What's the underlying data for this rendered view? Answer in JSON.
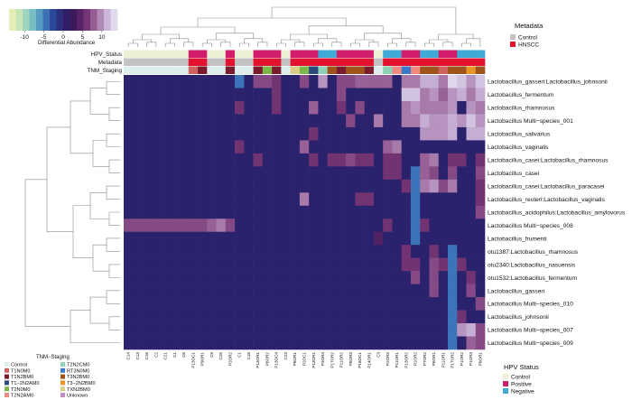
{
  "chart_data": {
    "type": "heatmap",
    "colorbar": {
      "label": "Differential Abundance",
      "ticks": [
        -10,
        -5,
        0,
        5,
        10
      ],
      "range": [
        -14,
        14
      ],
      "colors": [
        "#f3f2b5",
        "#c5e4ba",
        "#83c7c1",
        "#4a90c0",
        "#2c4a9e",
        "#2a226c",
        "#3c1858",
        "#6b2a6b",
        "#9e6a9e",
        "#c8b3d8",
        "#eceaf6"
      ]
    },
    "row_labels": [
      "Lactobacillus_gasseri:Lactobacillus_johnsonii",
      "Lactobacillus_fermentum",
      "Lactobacillus_rhamnosus",
      "Lactobacillus Multi−species_001",
      "Lactobacillus_salivarius",
      "Lactobacillus_vaginalis",
      "Lactobacillus_casei:Lactobacillus_rhamnosus",
      "Lactobacillus_casei",
      "Lactobacillus_casei:Lactobacillus_paracasei",
      "Lactobacillus_reuteri:Lactobacillus_vaginalis",
      "Lactobacillus_acidophilus:Lactobacillus_amylovorus",
      "Lactobacillus Multi−species_008",
      "Lactobacillus_frumenti",
      "otu1387:Lactobacillus_rhamnosus",
      "otu2340:Lactobacillus_nasuensis",
      "otu1532:Lactobacillus_fermentum",
      "Lactobacillus_gasseri",
      "Lactobacillus Multi−species_010",
      "Lactobacillus_johnsonii",
      "Lactobacillus Multi−species_007",
      "Lactobacillus Multi−species_009"
    ],
    "col_labels": [
      "C14",
      "C13",
      "C16",
      "C2",
      "C21",
      "C1",
      "C6",
      "P13OC1",
      "P9OR1",
      "C9",
      "C25",
      "P2OR2",
      "C1",
      "C18",
      "P13OR1",
      "P6OR2",
      "P13OC4",
      "C23",
      "P8OR1",
      "P2OC1",
      "P13OR1",
      "P3OR4",
      "P17OR2",
      "P11OR2",
      "P8OR3",
      "P18OC1",
      "P14OR1",
      "C3",
      "P2OR3",
      "P11OR1",
      "P13OR2",
      "P2OR2",
      "P7OR2",
      "P6OR1",
      "P11OR1",
      "P17OR2",
      "P1OR2",
      "P1OR3",
      "P8OR1"
    ],
    "hpv_status": [
      "C",
      "C",
      "C",
      "C",
      "C",
      "C",
      "C",
      "P",
      "P",
      "C",
      "C",
      "P",
      "C",
      "C",
      "P",
      "P",
      "P",
      "C",
      "P",
      "P",
      "P",
      "N",
      "N",
      "P",
      "P",
      "P",
      "P",
      "C",
      "N",
      "N",
      "P",
      "P",
      "N",
      "N",
      "P",
      "P",
      "N",
      "N",
      "N"
    ],
    "metadata": [
      "C",
      "C",
      "C",
      "C",
      "C",
      "C",
      "C",
      "H",
      "H",
      "C",
      "C",
      "H",
      "C",
      "C",
      "H",
      "H",
      "H",
      "C",
      "H",
      "H",
      "H",
      "H",
      "H",
      "H",
      "H",
      "H",
      "H",
      "C",
      "H",
      "H",
      "H",
      "H",
      "H",
      "H",
      "H",
      "H",
      "H",
      "H",
      "H"
    ],
    "tnm_staging": [
      "C",
      "C",
      "C",
      "C",
      "C",
      "C",
      "C",
      "TNM1",
      "TNM2",
      "C",
      "C",
      "TNM2",
      "C",
      "C",
      "TNM2",
      "TNM4",
      "TNM2",
      "C",
      "TNM10",
      "TNM4",
      "TNM3",
      "TNM6",
      "TNM8",
      "TNM2",
      "TNM8",
      "TNM8",
      "TNM2",
      "C",
      "TNM6",
      "TNM5",
      "TNM7",
      "TNM5",
      "TNM8",
      "TNM8",
      "TNM1",
      "TNM8",
      "TNM8",
      "TNM9",
      "TNM8"
    ],
    "values": [
      [
        0,
        0,
        0,
        0,
        0,
        0,
        0,
        0,
        0,
        0,
        0,
        0,
        0,
        0,
        7,
        7,
        6,
        0,
        0,
        7,
        0,
        10,
        0,
        7,
        7,
        8,
        8,
        8,
        8,
        0,
        9,
        9,
        11,
        11,
        9,
        13,
        12,
        10,
        12
      ],
      [
        0,
        0,
        0,
        0,
        0,
        0,
        0,
        0,
        0,
        0,
        0,
        0,
        0,
        0,
        0,
        0,
        6,
        0,
        0,
        0,
        0,
        0,
        0,
        7,
        0,
        0,
        0,
        0,
        0,
        0,
        12,
        12,
        9,
        10,
        8,
        10,
        11,
        9,
        11
      ],
      [
        0,
        0,
        0,
        0,
        0,
        0,
        0,
        0,
        0,
        0,
        0,
        0,
        6,
        0,
        0,
        0,
        6,
        0,
        0,
        0,
        8,
        0,
        0,
        6,
        0,
        7,
        0,
        0,
        0,
        0,
        9,
        10,
        9,
        9,
        9,
        10,
        0,
        10,
        9
      ],
      [
        0,
        0,
        0,
        0,
        0,
        0,
        0,
        0,
        0,
        0,
        0,
        0,
        0,
        0,
        0,
        0,
        0,
        0,
        0,
        0,
        0,
        0,
        0,
        0,
        7,
        0,
        0,
        9,
        0,
        0,
        9,
        9,
        11,
        10,
        10,
        11,
        10,
        12,
        10
      ],
      [
        0,
        0,
        0,
        0,
        0,
        0,
        0,
        0,
        0,
        0,
        0,
        0,
        0,
        0,
        0,
        0,
        0,
        0,
        0,
        0,
        6,
        0,
        0,
        0,
        0,
        0,
        0,
        0,
        0,
        0,
        0,
        0,
        10,
        10,
        10,
        11,
        0,
        11,
        11
      ],
      [
        0,
        0,
        0,
        0,
        0,
        0,
        0,
        0,
        0,
        0,
        0,
        0,
        6,
        0,
        0,
        0,
        0,
        0,
        0,
        8,
        0,
        0,
        0,
        0,
        0,
        0,
        0,
        0,
        8,
        9,
        0,
        0,
        0,
        0,
        0,
        0,
        0,
        0,
        0
      ],
      [
        0,
        0,
        0,
        0,
        0,
        0,
        0,
        0,
        0,
        0,
        0,
        0,
        0,
        0,
        6,
        0,
        0,
        0,
        0,
        0,
        6,
        0,
        6,
        6,
        7,
        6,
        6,
        0,
        6,
        6,
        0,
        0,
        8,
        9,
        0,
        6,
        6,
        0,
        6
      ],
      [
        0,
        0,
        0,
        0,
        0,
        0,
        0,
        0,
        0,
        0,
        0,
        0,
        0,
        0,
        0,
        0,
        0,
        0,
        0,
        0,
        0,
        0,
        0,
        0,
        0,
        0,
        0,
        0,
        6,
        6,
        0,
        0,
        8,
        7,
        0,
        7,
        0,
        0,
        7
      ],
      [
        0,
        0,
        0,
        0,
        0,
        0,
        0,
        0,
        0,
        0,
        0,
        0,
        0,
        0,
        0,
        0,
        0,
        0,
        0,
        0,
        0,
        0,
        0,
        0,
        0,
        0,
        0,
        0,
        0,
        0,
        6,
        7,
        9,
        10,
        7,
        9,
        0,
        0,
        6
      ],
      [
        0,
        0,
        0,
        0,
        0,
        0,
        0,
        0,
        0,
        0,
        0,
        0,
        0,
        0,
        0,
        0,
        0,
        0,
        0,
        9,
        0,
        0,
        0,
        0,
        0,
        6,
        6,
        0,
        0,
        0,
        0,
        0,
        0,
        0,
        0,
        0,
        0,
        0,
        6
      ],
      [
        0,
        0,
        0,
        0,
        0,
        0,
        0,
        0,
        0,
        0,
        0,
        0,
        0,
        0,
        0,
        0,
        0,
        0,
        0,
        0,
        0,
        0,
        0,
        0,
        0,
        0,
        0,
        0,
        0,
        0,
        0,
        0,
        0,
        0,
        0,
        0,
        0,
        0,
        7
      ],
      [
        7,
        7,
        7,
        7,
        7,
        7,
        7,
        7,
        7,
        8,
        9,
        7,
        0,
        0,
        0,
        0,
        0,
        0,
        0,
        0,
        0,
        0,
        0,
        0,
        0,
        0,
        0,
        0,
        6,
        0,
        0,
        0,
        6,
        0,
        0,
        0,
        0,
        0,
        0
      ],
      [
        0,
        0,
        0,
        0,
        0,
        0,
        0,
        0,
        0,
        0,
        0,
        0,
        0,
        0,
        0,
        0,
        0,
        0,
        0,
        0,
        0,
        0,
        0,
        0,
        0,
        0,
        0,
        4,
        0,
        0,
        0,
        0,
        0,
        0,
        0,
        0,
        0,
        0,
        0
      ],
      [
        0,
        0,
        0,
        0,
        0,
        0,
        0,
        0,
        0,
        0,
        0,
        0,
        0,
        0,
        0,
        0,
        0,
        0,
        0,
        0,
        0,
        0,
        0,
        0,
        0,
        0,
        0,
        0,
        0,
        0,
        6,
        0,
        0,
        6,
        0,
        0,
        0,
        0,
        0
      ],
      [
        0,
        0,
        0,
        0,
        0,
        0,
        0,
        0,
        0,
        0,
        0,
        0,
        0,
        0,
        0,
        0,
        0,
        0,
        0,
        0,
        0,
        0,
        0,
        0,
        0,
        0,
        0,
        0,
        0,
        0,
        6,
        6,
        0,
        7,
        6,
        0,
        6,
        0,
        0
      ],
      [
        0,
        0,
        0,
        0,
        0,
        0,
        0,
        0,
        0,
        0,
        0,
        0,
        0,
        0,
        0,
        0,
        0,
        0,
        0,
        0,
        0,
        0,
        0,
        0,
        0,
        0,
        0,
        0,
        0,
        0,
        0,
        7,
        0,
        7,
        0,
        6,
        0,
        6,
        0
      ],
      [
        0,
        0,
        0,
        0,
        0,
        0,
        0,
        0,
        0,
        0,
        0,
        0,
        0,
        0,
        0,
        0,
        0,
        0,
        0,
        0,
        0,
        0,
        0,
        0,
        0,
        0,
        0,
        0,
        0,
        0,
        0,
        0,
        0,
        7,
        0,
        0,
        0,
        7,
        0
      ],
      [
        0,
        0,
        0,
        0,
        0,
        0,
        0,
        0,
        0,
        0,
        0,
        0,
        0,
        0,
        0,
        0,
        0,
        0,
        0,
        0,
        0,
        0,
        0,
        0,
        0,
        0,
        0,
        0,
        0,
        0,
        0,
        0,
        0,
        0,
        0,
        0,
        0,
        0,
        7
      ],
      [
        0,
        0,
        0,
        0,
        0,
        0,
        0,
        0,
        0,
        0,
        0,
        0,
        0,
        0,
        0,
        0,
        0,
        0,
        0,
        0,
        0,
        0,
        0,
        0,
        0,
        0,
        0,
        0,
        0,
        0,
        0,
        0,
        0,
        0,
        0,
        0,
        6,
        0,
        0
      ],
      [
        0,
        0,
        0,
        0,
        0,
        0,
        0,
        0,
        0,
        0,
        0,
        0,
        0,
        0,
        0,
        0,
        0,
        0,
        0,
        0,
        0,
        0,
        0,
        0,
        0,
        0,
        0,
        0,
        0,
        0,
        0,
        0,
        0,
        0,
        0,
        0,
        10,
        11,
        7
      ],
      [
        0,
        0,
        0,
        0,
        0,
        0,
        0,
        0,
        0,
        0,
        0,
        0,
        0,
        0,
        0,
        0,
        0,
        0,
        0,
        0,
        0,
        0,
        0,
        0,
        0,
        0,
        0,
        0,
        0,
        0,
        0,
        0,
        0,
        0,
        0,
        0,
        0,
        8,
        7
      ]
    ],
    "special_cells": [
      {
        "row": 0,
        "col": 12,
        "color": "#3b74b8"
      },
      {
        "row": 7,
        "col": 31,
        "color": "#3b74b8"
      },
      {
        "row": 8,
        "col": 31,
        "color": "#3b74b8"
      },
      {
        "row": 9,
        "col": 31,
        "color": "#3b74b8"
      },
      {
        "row": 10,
        "col": 31,
        "color": "#3b74b8"
      },
      {
        "row": 11,
        "col": 31,
        "color": "#3b74b8"
      },
      {
        "row": 12,
        "col": 31,
        "color": "#3b74b8"
      },
      {
        "row": 13,
        "col": 35,
        "color": "#3b74b8"
      },
      {
        "row": 14,
        "col": 35,
        "color": "#3b74b8"
      },
      {
        "row": 15,
        "col": 35,
        "color": "#3b74b8"
      },
      {
        "row": 16,
        "col": 35,
        "color": "#3b74b8"
      },
      {
        "row": 17,
        "col": 35,
        "color": "#3b74b8"
      },
      {
        "row": 18,
        "col": 35,
        "color": "#3b74b8"
      },
      {
        "row": 19,
        "col": 35,
        "color": "#3b74b8"
      },
      {
        "row": 20,
        "col": 35,
        "color": "#3b74b8"
      }
    ],
    "annotation_rows": [
      "HPV_Status",
      "Metadata",
      "TNM_Staging"
    ]
  },
  "legends": {
    "metadata": {
      "title": "Metadata",
      "items": [
        {
          "key": "C",
          "label": "Control",
          "color": "#c4c2c2"
        },
        {
          "key": "H",
          "label": "HNSCC",
          "color": "#e3122e"
        }
      ]
    },
    "hpv": {
      "title": "HPV Status",
      "items": [
        {
          "key": "C",
          "label": "Control",
          "color": "#ecf1d6"
        },
        {
          "key": "P",
          "label": "Positive",
          "color": "#d21d6c"
        },
        {
          "key": "N",
          "label": "Negative",
          "color": "#3fa9d8"
        }
      ]
    },
    "tnm": {
      "title": "TNM−Staging",
      "items": [
        {
          "key": "C",
          "label": "Control",
          "color": "#dfeff0"
        },
        {
          "key": "TNM1",
          "label": "T1N0M0",
          "color": "#d2625f"
        },
        {
          "key": "TNM2",
          "label": "T1N2BM0",
          "color": "#7a1c2e"
        },
        {
          "key": "TNM3",
          "label": "T1−2N2AM0",
          "color": "#2c4a7e"
        },
        {
          "key": "TNM4",
          "label": "T2N0M0",
          "color": "#7db74a"
        },
        {
          "key": "TNM5",
          "label": "T2N2AM0",
          "color": "#f08a7f"
        },
        {
          "key": "TNM6",
          "label": "T2N2CM0",
          "color": "#8fd0b8"
        },
        {
          "key": "TNM7",
          "label": "RT3N0M0",
          "color": "#3a78c9"
        },
        {
          "key": "TNM8",
          "label": "T3N2BM0",
          "color": "#a0541d"
        },
        {
          "key": "TNM9",
          "label": "T3−2N2BM0",
          "color": "#e79526"
        },
        {
          "key": "TNM10",
          "label": "TXN2BM0",
          "color": "#d9cf87"
        },
        {
          "key": "TNM11",
          "label": "Unknown",
          "color": "#c58fbf"
        }
      ]
    }
  }
}
